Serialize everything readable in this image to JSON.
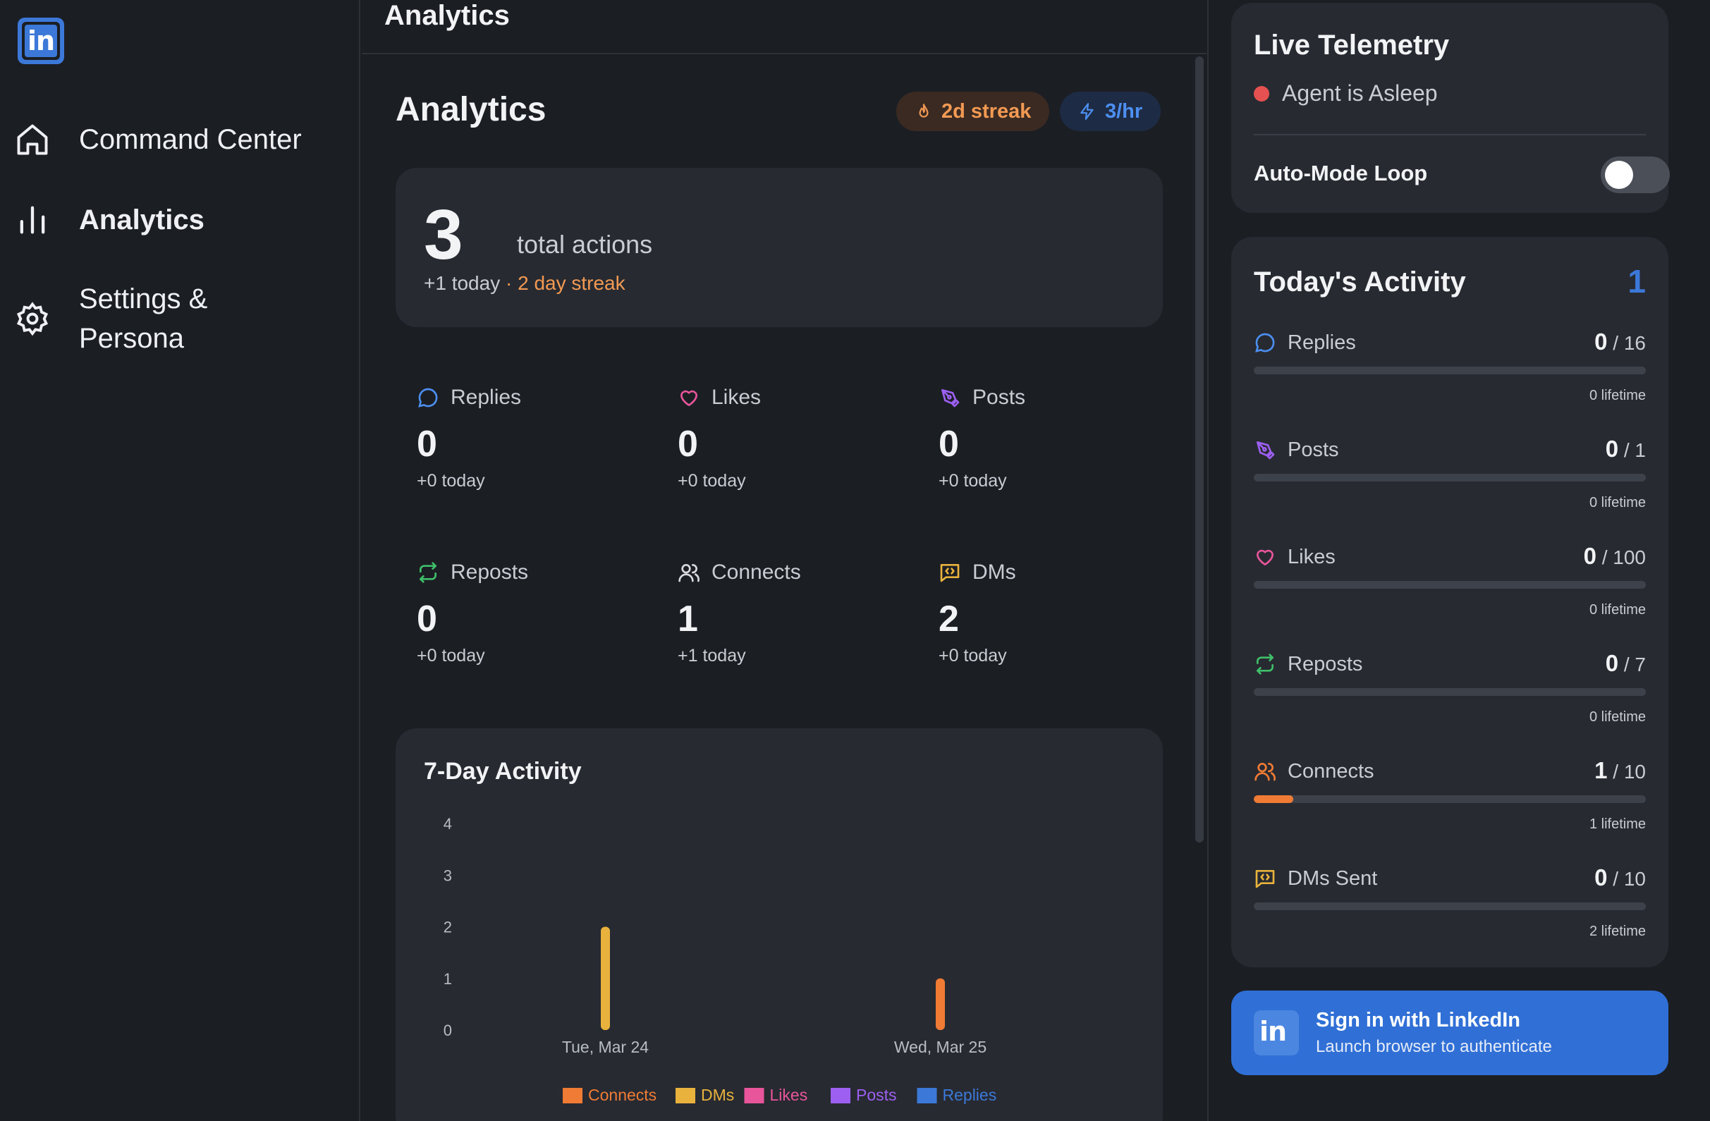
{
  "sidebar": {
    "logo_text": "in",
    "items": [
      {
        "label": "Command Center",
        "icon": "home-icon"
      },
      {
        "label": "Analytics",
        "icon": "bar-chart-icon"
      },
      {
        "label": "Settings & Persona",
        "icon": "gear-icon"
      }
    ]
  },
  "main": {
    "topbar_title": "Analytics",
    "page_title": "Analytics",
    "streak_badge": "2d streak",
    "rate_badge": "3/hr",
    "total": {
      "value": "3",
      "label": "total actions",
      "today": "+1 today",
      "streak": "· 2 day streak"
    },
    "stats": [
      {
        "label": "Replies",
        "value": "0",
        "today": "+0 today",
        "icon": "chat-bubble-icon",
        "color": "#4d8ff0"
      },
      {
        "label": "Likes",
        "value": "0",
        "today": "+0 today",
        "icon": "heart-icon",
        "color": "#e8559b"
      },
      {
        "label": "Posts",
        "value": "0",
        "today": "+0 today",
        "icon": "pen-icon",
        "color": "#9d5ff0"
      },
      {
        "label": "Reposts",
        "value": "0",
        "today": "+0 today",
        "icon": "repost-icon",
        "color": "#3fbf6a"
      },
      {
        "label": "Connects",
        "value": "1",
        "today": "+1 today",
        "icon": "users-icon",
        "color": "#d8dade"
      },
      {
        "label": "DMs",
        "value": "2",
        "today": "+0 today",
        "icon": "message-code-icon",
        "color": "#e8b23c"
      }
    ]
  },
  "chart_data": {
    "type": "bar",
    "title": "7-Day Activity",
    "categories": [
      "Tue, Mar 24",
      "Wed, Mar 25"
    ],
    "series": [
      {
        "name": "Connects",
        "values": [
          0,
          1
        ],
        "color": "#f07b35"
      },
      {
        "name": "DMs",
        "values": [
          2,
          0
        ],
        "color": "#e8b23c"
      },
      {
        "name": "Likes",
        "values": [
          0,
          0
        ],
        "color": "#e8559b"
      },
      {
        "name": "Posts",
        "values": [
          0,
          0
        ],
        "color": "#9d5ff0"
      },
      {
        "name": "Replies",
        "values": [
          0,
          0
        ],
        "color": "#3b78d8"
      }
    ],
    "yticks": [
      0,
      1,
      2,
      3,
      4
    ],
    "ylim": [
      0,
      4
    ],
    "legend": "bottom"
  },
  "telemetry": {
    "title": "Live Telemetry",
    "status": "Agent is Asleep",
    "auto_mode_label": "Auto-Mode Loop",
    "auto_mode_on": false
  },
  "activity": {
    "title": "Today's Activity",
    "count": "1",
    "items": [
      {
        "label": "Replies",
        "value": "0",
        "limit": "/ 16",
        "lifetime": "0 lifetime",
        "progress": 0,
        "icon": "chat-bubble-icon",
        "color": "#4d8ff0"
      },
      {
        "label": "Posts",
        "value": "0",
        "limit": "/ 1",
        "lifetime": "0 lifetime",
        "progress": 0,
        "icon": "pen-icon",
        "color": "#9d5ff0"
      },
      {
        "label": "Likes",
        "value": "0",
        "limit": "/ 100",
        "lifetime": "0 lifetime",
        "progress": 0,
        "icon": "heart-icon",
        "color": "#e8559b"
      },
      {
        "label": "Reposts",
        "value": "0",
        "limit": "/ 7",
        "lifetime": "0 lifetime",
        "progress": 0,
        "icon": "repost-icon",
        "color": "#3fbf6a"
      },
      {
        "label": "Connects",
        "value": "1",
        "limit": "/ 10",
        "lifetime": "1 lifetime",
        "progress": 0.1,
        "icon": "users-icon",
        "color": "#f07b35"
      },
      {
        "label": "DMs Sent",
        "value": "0",
        "limit": "/ 10",
        "lifetime": "2 lifetime",
        "progress": 0,
        "icon": "message-code-icon",
        "color": "#e8b23c"
      }
    ]
  },
  "signin": {
    "title": "Sign in with LinkedIn",
    "subtitle": "Launch browser to authenticate",
    "logo_text": "in"
  }
}
